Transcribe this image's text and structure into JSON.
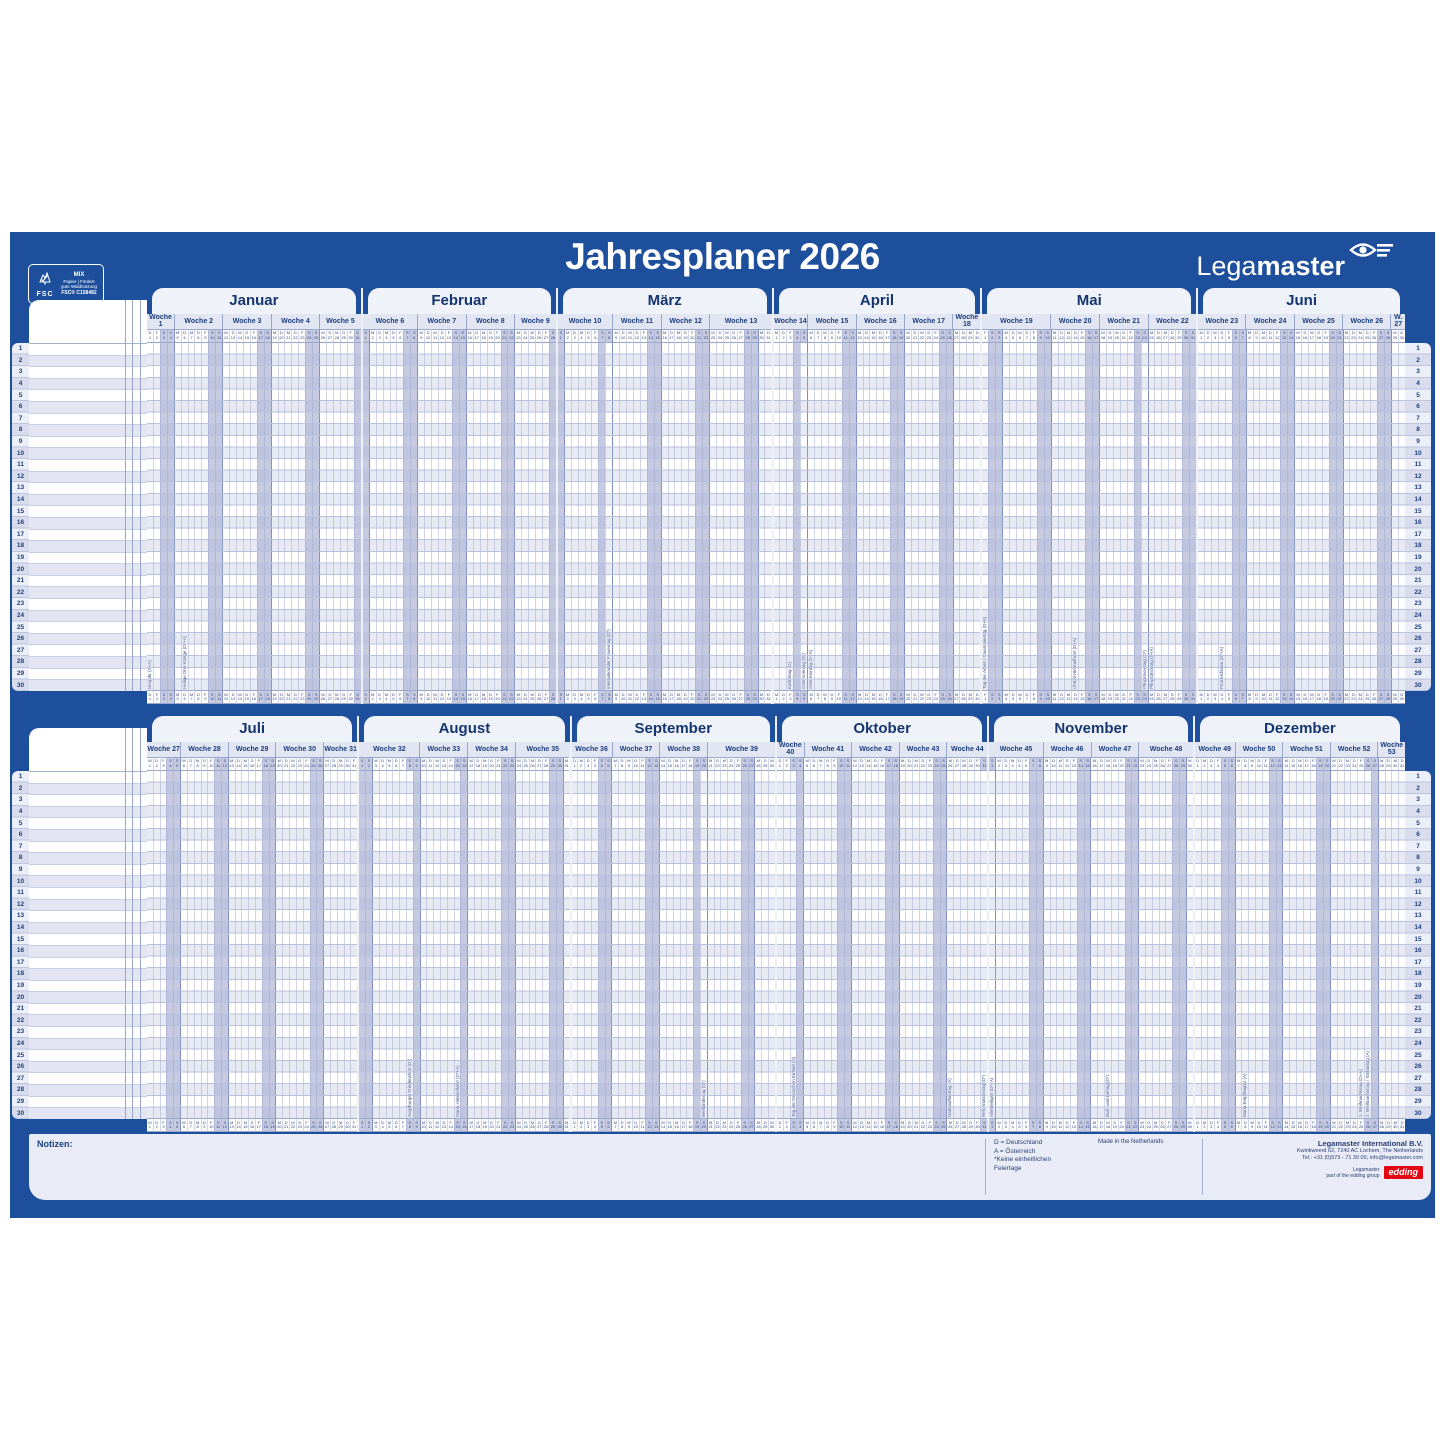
{
  "title": "Jahresplaner 2026",
  "brand": {
    "name_light": "Lega",
    "name_bold": "master",
    "eye_icon": "eye-icon"
  },
  "fsc": {
    "label": "FSC",
    "lines": [
      "MIX",
      "Papier | Fördert",
      "gute Waldnutzung",
      "FSC® C158482"
    ]
  },
  "colors": {
    "board_blue": "#1d4f9c",
    "panel_light": "#f0f2fa",
    "band_light": "#e2e5f2",
    "weekend_shade": "#c6cbe2",
    "navy_text": "#14356e",
    "edding_red": "#e30613"
  },
  "rows_per_half": 30,
  "weekday_letters": [
    "M",
    "D",
    "M",
    "D",
    "F",
    "S",
    "S"
  ],
  "halves": [
    {
      "months": [
        {
          "name": "Januar",
          "days": 31,
          "first_weekday": 3,
          "weeks": [
            [
              "Woche 1",
              4
            ],
            [
              "Woche 2",
              7
            ],
            [
              "Woche 3",
              7
            ],
            [
              "Woche 4",
              7
            ],
            [
              "Woche 5",
              6
            ]
          ],
          "holidays": {
            "1": "Neujahr (D+A)",
            "6": "Heilige Drei Könige (D*+A)"
          }
        },
        {
          "name": "Februar",
          "days": 28,
          "first_weekday": 6,
          "weeks": [
            [
              "Woche 6",
              8
            ],
            [
              "Woche 7",
              7
            ],
            [
              "Woche 8",
              7
            ],
            [
              "Woche 9",
              6
            ]
          ],
          "holidays": {}
        },
        {
          "name": "März",
          "days": 31,
          "first_weekday": 6,
          "weeks": [
            [
              "Woche 10",
              8
            ],
            [
              "Woche 11",
              7
            ],
            [
              "Woche 12",
              7
            ],
            [
              "Woche 13",
              9
            ]
          ],
          "holidays": {
            "8": "Internationaler Frauentag (D*)"
          }
        },
        {
          "name": "April",
          "days": 30,
          "first_weekday": 2,
          "weeks": [
            [
              "Woche 14",
              5
            ],
            [
              "Woche 15",
              7
            ],
            [
              "Woche 16",
              7
            ],
            [
              "Woche 17",
              7
            ],
            [
              "Woche 18",
              4
            ]
          ],
          "holidays": {
            "3": "Karfreitag (D)",
            "5": "Ostersonntag (D*)",
            "6": "Ostermontag (D+A)"
          }
        },
        {
          "name": "Mai",
          "days": 31,
          "first_weekday": 4,
          "weeks": [
            [
              "Woche 19",
              10
            ],
            [
              "Woche 20",
              7
            ],
            [
              "Woche 21",
              7
            ],
            [
              "Woche 22",
              7
            ]
          ],
          "holidays": {
            "1": "Tag der Arbeit / Staatsfeiertag (D+A)",
            "14": "Christi Himmelfahrt (D+A)",
            "24": "Pfingstsonntag (D*)",
            "25": "Pfingstmontag (D+A)"
          }
        },
        {
          "name": "Juni",
          "days": 30,
          "first_weekday": 0,
          "weeks": [
            [
              "Woche 23",
              7
            ],
            [
              "Woche 24",
              7
            ],
            [
              "Woche 25",
              7
            ],
            [
              "Woche 26",
              7
            ],
            [
              "W. 27",
              2
            ]
          ],
          "holidays": {
            "4": "Fronleichnam (D*+A)"
          }
        }
      ]
    },
    {
      "months": [
        {
          "name": "Juli",
          "days": 31,
          "first_weekday": 2,
          "weeks": [
            [
              "Woche 27",
              5
            ],
            [
              "Woche 28",
              7
            ],
            [
              "Woche 29",
              7
            ],
            [
              "Woche 30",
              7
            ],
            [
              "Woche 31",
              5
            ]
          ],
          "holidays": {}
        },
        {
          "name": "August",
          "days": 31,
          "first_weekday": 5,
          "weeks": [
            [
              "Woche 32",
              9
            ],
            [
              "Woche 33",
              7
            ],
            [
              "Woche 34",
              7
            ],
            [
              "Woche 35",
              8
            ]
          ],
          "holidays": {
            "8": "Augsburger Friedensfest (D*)",
            "15": "Mariä Himmelfahrt (D*+A)"
          }
        },
        {
          "name": "September",
          "days": 30,
          "first_weekday": 1,
          "weeks": [
            [
              "Woche 36",
              6
            ],
            [
              "Woche 37",
              7
            ],
            [
              "Woche 38",
              7
            ],
            [
              "Woche 39",
              10
            ]
          ],
          "holidays": {
            "20": "Weltkindertag (D*)"
          }
        },
        {
          "name": "Oktober",
          "days": 31,
          "first_weekday": 3,
          "weeks": [
            [
              "Woche 40",
              4
            ],
            [
              "Woche 41",
              7
            ],
            [
              "Woche 42",
              7
            ],
            [
              "Woche 43",
              7
            ],
            [
              "Woche 44",
              6
            ]
          ],
          "holidays": {
            "3": "Tag der Deutschen Einheit (D)",
            "26": "Nationalfeiertag (A)",
            "31": "Reformationstag (D*)"
          }
        },
        {
          "name": "November",
          "days": 30,
          "first_weekday": 6,
          "weeks": [
            [
              "Woche 45",
              8
            ],
            [
              "Woche 46",
              7
            ],
            [
              "Woche 47",
              7
            ],
            [
              "Woche 48",
              8
            ]
          ],
          "holidays": {
            "1": "Allerheiligen (D*+A)",
            "18": "Buß- und Bettag (D*)"
          }
        },
        {
          "name": "Dezember",
          "days": 31,
          "first_weekday": 1,
          "weeks": [
            [
              "Woche 49",
              6
            ],
            [
              "Woche 50",
              7
            ],
            [
              "Woche 51",
              7
            ],
            [
              "Woche 52",
              7
            ],
            [
              "Woche 53",
              4
            ]
          ],
          "holidays": {
            "8": "Mariä Empfängnis (A)",
            "25": "1. Weihnachtstag (D+A)",
            "26": "2. Weihnachtstag / Stefanitag (A)"
          }
        }
      ]
    }
  ],
  "notes_label": "Notizen:",
  "legend": {
    "lines": [
      "D = Deutschland",
      "A = Österreich",
      "*Keine einheitlichen",
      "Feiertage"
    ],
    "made_in": "Made in the Netherlands"
  },
  "publisher": {
    "name": "Legamaster International B.V.",
    "address": "Kwinkweerd 62, 7240 AC Lochem, The Netherlands",
    "phone": "Tel.: +31 (0)573 - 71 30 00, info@legamaster.com",
    "group_line1": "Legamaster",
    "group_line2": "part of the edding group",
    "edding_label": "edding"
  }
}
